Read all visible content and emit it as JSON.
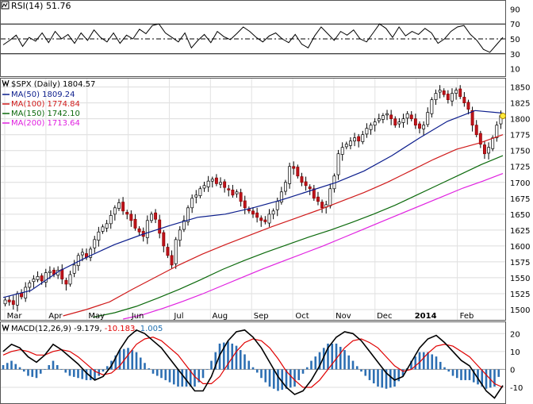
{
  "chart_data": [
    {
      "type": "line",
      "title": "RSI(14) 51.76",
      "indicator": "RSI(14)",
      "last_value": 51.76,
      "ylim": [
        0,
        100
      ],
      "yticks": [
        "90",
        "70",
        "50",
        "30",
        "10"
      ],
      "reference_lines": [
        30,
        50,
        70
      ],
      "series": [
        {
          "name": "RSI(14)",
          "values": [
            42,
            48,
            55,
            40,
            52,
            47,
            58,
            45,
            60,
            50,
            56,
            44,
            58,
            48,
            62,
            52,
            46,
            58,
            44,
            55,
            50,
            63,
            57,
            68,
            70,
            58,
            52,
            46,
            58,
            38,
            48,
            56,
            45,
            60,
            53,
            49,
            57,
            66,
            60,
            52,
            46,
            54,
            58,
            50,
            45,
            56,
            43,
            38,
            54,
            66,
            57,
            48,
            60,
            55,
            62,
            50,
            46,
            58,
            70,
            64,
            52,
            66,
            54,
            60,
            56,
            64,
            58,
            44,
            50,
            60,
            66,
            68,
            56,
            48,
            36,
            32,
            42,
            52
          ]
        }
      ]
    },
    {
      "type": "candlestick",
      "title": "$SPX (Daily) 1804.57",
      "symbol": "$SPX",
      "period": "Daily",
      "last_value": 1804.57,
      "ylim": [
        1485,
        1862
      ],
      "yticks": [
        "1850",
        "1825",
        "1800",
        "1775",
        "1750",
        "1725",
        "1700",
        "1675",
        "1650",
        "1625",
        "1600",
        "1575",
        "1550",
        "1525",
        "1500"
      ],
      "xticks": [
        "Mar",
        "Apr",
        "May",
        "Jun",
        "Jul",
        "Aug",
        "Sep",
        "Oct",
        "Nov",
        "Dec",
        "2014",
        "Feb"
      ],
      "legend": [
        {
          "label": "$SPX (Daily) 1804.57",
          "color": "#000000"
        },
        {
          "label": "MA(50) 1809.24",
          "color": "#0b1d8c"
        },
        {
          "label": "MA(100) 1774.84",
          "color": "#d01b1b"
        },
        {
          "label": "MA(150) 1742.10",
          "color": "#0c6a0c"
        },
        {
          "label": "MA(200) 1713.64",
          "color": "#e021e0"
        }
      ],
      "close": [
        1515,
        1512,
        1508,
        1525,
        1520,
        1535,
        1542,
        1548,
        1552,
        1545,
        1558,
        1560,
        1555,
        1562,
        1548,
        1540,
        1555,
        1570,
        1585,
        1590,
        1582,
        1595,
        1610,
        1622,
        1630,
        1635,
        1648,
        1660,
        1668,
        1655,
        1650,
        1640,
        1628,
        1622,
        1615,
        1640,
        1650,
        1642,
        1620,
        1600,
        1585,
        1570,
        1610,
        1625,
        1640,
        1660,
        1675,
        1680,
        1690,
        1695,
        1702,
        1705,
        1698,
        1700,
        1692,
        1688,
        1680,
        1685,
        1670,
        1660,
        1655,
        1650,
        1645,
        1640,
        1638,
        1650,
        1655,
        1670,
        1685,
        1700,
        1725,
        1722,
        1710,
        1700,
        1695,
        1690,
        1675,
        1670,
        1660,
        1665,
        1690,
        1710,
        1745,
        1755,
        1760,
        1765,
        1770,
        1765,
        1775,
        1785,
        1790,
        1795,
        1800,
        1805,
        1808,
        1800,
        1790,
        1795,
        1800,
        1808,
        1800,
        1790,
        1785,
        1790,
        1810,
        1830,
        1840,
        1845,
        1838,
        1830,
        1840,
        1845,
        1835,
        1825,
        1815,
        1790,
        1775,
        1760,
        1745,
        1755,
        1770,
        1790,
        1805
      ],
      "series": [
        {
          "name": "MA(50)",
          "last": 1809.24,
          "start": 1519,
          "end": 1809,
          "values": [
            1519,
            1530,
            1560,
            1582,
            1602,
            1618,
            1632,
            1645,
            1650,
            1660,
            1672,
            1686,
            1700,
            1718,
            1742,
            1770,
            1796,
            1813,
            1809
          ]
        },
        {
          "name": "MA(100)",
          "start": 1490,
          "end": 1775,
          "values": [
            1490,
            1500,
            1512,
            1532,
            1551,
            1570,
            1587,
            1602,
            1616,
            1630,
            1643,
            1656,
            1670,
            1684,
            1700,
            1718,
            1736,
            1752,
            1762,
            1775
          ]
        },
        {
          "name": "MA(150)",
          "start": 1488,
          "end": 1742,
          "values": [
            1488,
            1495,
            1505,
            1518,
            1532,
            1547,
            1563,
            1577,
            1590,
            1602,
            1614,
            1625,
            1637,
            1650,
            1664,
            1680,
            1696,
            1712,
            1728,
            1742
          ]
        },
        {
          "name": "MA(200)",
          "start": 1485,
          "end": 1714,
          "values": [
            1485,
            1492,
            1502,
            1513,
            1525,
            1538,
            1551,
            1564,
            1576,
            1588,
            1600,
            1613,
            1626,
            1639,
            1652,
            1665,
            1678,
            1691,
            1702,
            1714
          ]
        }
      ]
    },
    {
      "type": "line+bar",
      "title": "MACD(12,26,9) -9.179, -10.183, 1.005",
      "indicator": "MACD(12,26,9)",
      "macd": -9.179,
      "signal": -10.183,
      "histogram": 1.005,
      "macd_label": "MACD(12,26,9) -9.179",
      "signal_label": "-10.183",
      "hist_label": "1.005",
      "ylim": [
        -18,
        25
      ],
      "yticks": [
        "20",
        "10",
        "0",
        "-10"
      ],
      "series": [
        {
          "name": "MACD",
          "color": "#000000",
          "values": [
            10,
            14,
            12,
            7,
            4,
            8,
            14,
            11,
            7,
            3,
            -2,
            -6,
            -4,
            2,
            11,
            18,
            22,
            20,
            16,
            12,
            6,
            0,
            -6,
            -12,
            -12,
            -4,
            8,
            16,
            21,
            22,
            18,
            12,
            4,
            -4,
            -10,
            -14,
            -12,
            -6,
            2,
            12,
            18,
            21,
            20,
            16,
            10,
            4,
            -2,
            -6,
            -4,
            4,
            12,
            17,
            19,
            15,
            10,
            5,
            2,
            -5,
            -12,
            -16,
            -9
          ]
        },
        {
          "name": "Signal",
          "color": "#e00000",
          "values": [
            8,
            10,
            11,
            10,
            8,
            8,
            10,
            11,
            10,
            7,
            3,
            -1,
            -3,
            -2,
            2,
            8,
            14,
            17,
            18,
            16,
            12,
            8,
            2,
            -4,
            -8,
            -8,
            -4,
            3,
            10,
            15,
            17,
            16,
            12,
            6,
            -1,
            -6,
            -10,
            -10,
            -6,
            0,
            6,
            12,
            16,
            17,
            15,
            12,
            7,
            2,
            -1,
            0,
            4,
            9,
            13,
            14,
            13,
            10,
            7,
            2,
            -3,
            -8,
            -10
          ]
        }
      ]
    }
  ]
}
